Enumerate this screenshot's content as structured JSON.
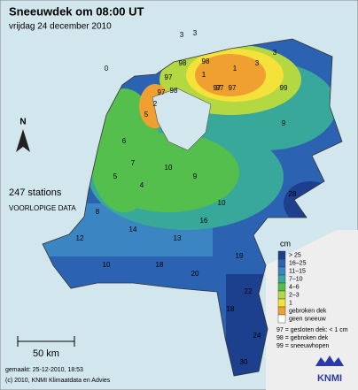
{
  "header": {
    "title": "Sneeuwdek om 08:00 UT",
    "subtitle": "vrijdag 24 december 2010"
  },
  "info": {
    "stations": "247 stations",
    "status": "VOORLOPIGE DATA"
  },
  "north": "N",
  "scale": {
    "label": "50 km"
  },
  "legend": {
    "unit": "cm",
    "items": [
      {
        "label": "> 25",
        "color": "#1c3f8e"
      },
      {
        "label": "16–25",
        "color": "#2c62b2"
      },
      {
        "label": "11–15",
        "color": "#3b86c2"
      },
      {
        "label": "7–10",
        "color": "#38a89a"
      },
      {
        "label": "4–6",
        "color": "#54bf4c"
      },
      {
        "label": "2–3",
        "color": "#b4d842"
      },
      {
        "label": "1",
        "color": "#f4e23a"
      },
      {
        "label": "gebroken dek",
        "color": "#f0a030"
      },
      {
        "label": "geen sneeuw",
        "color": "#ffffff"
      }
    ],
    "notes": [
      "97 = gesloten dek: < 1 cm",
      "98 = gebroken dek",
      "99 = sneeuwhopen"
    ]
  },
  "footer": {
    "made": "gemaakt: 25-12-2010, 18:53",
    "copyright": "(c) 2010, KNMI Klimaatdata en Advies"
  },
  "logo": "KNMI",
  "stations": [
    3,
    3,
    98,
    97,
    98,
    0,
    1,
    97,
    97,
    3,
    98,
    97,
    5,
    2,
    97,
    1,
    3,
    9,
    6,
    7,
    10,
    9,
    10,
    5,
    4,
    8,
    12,
    14,
    13,
    16,
    18,
    20,
    19,
    22,
    18,
    24,
    30,
    28,
    99,
    10
  ]
}
